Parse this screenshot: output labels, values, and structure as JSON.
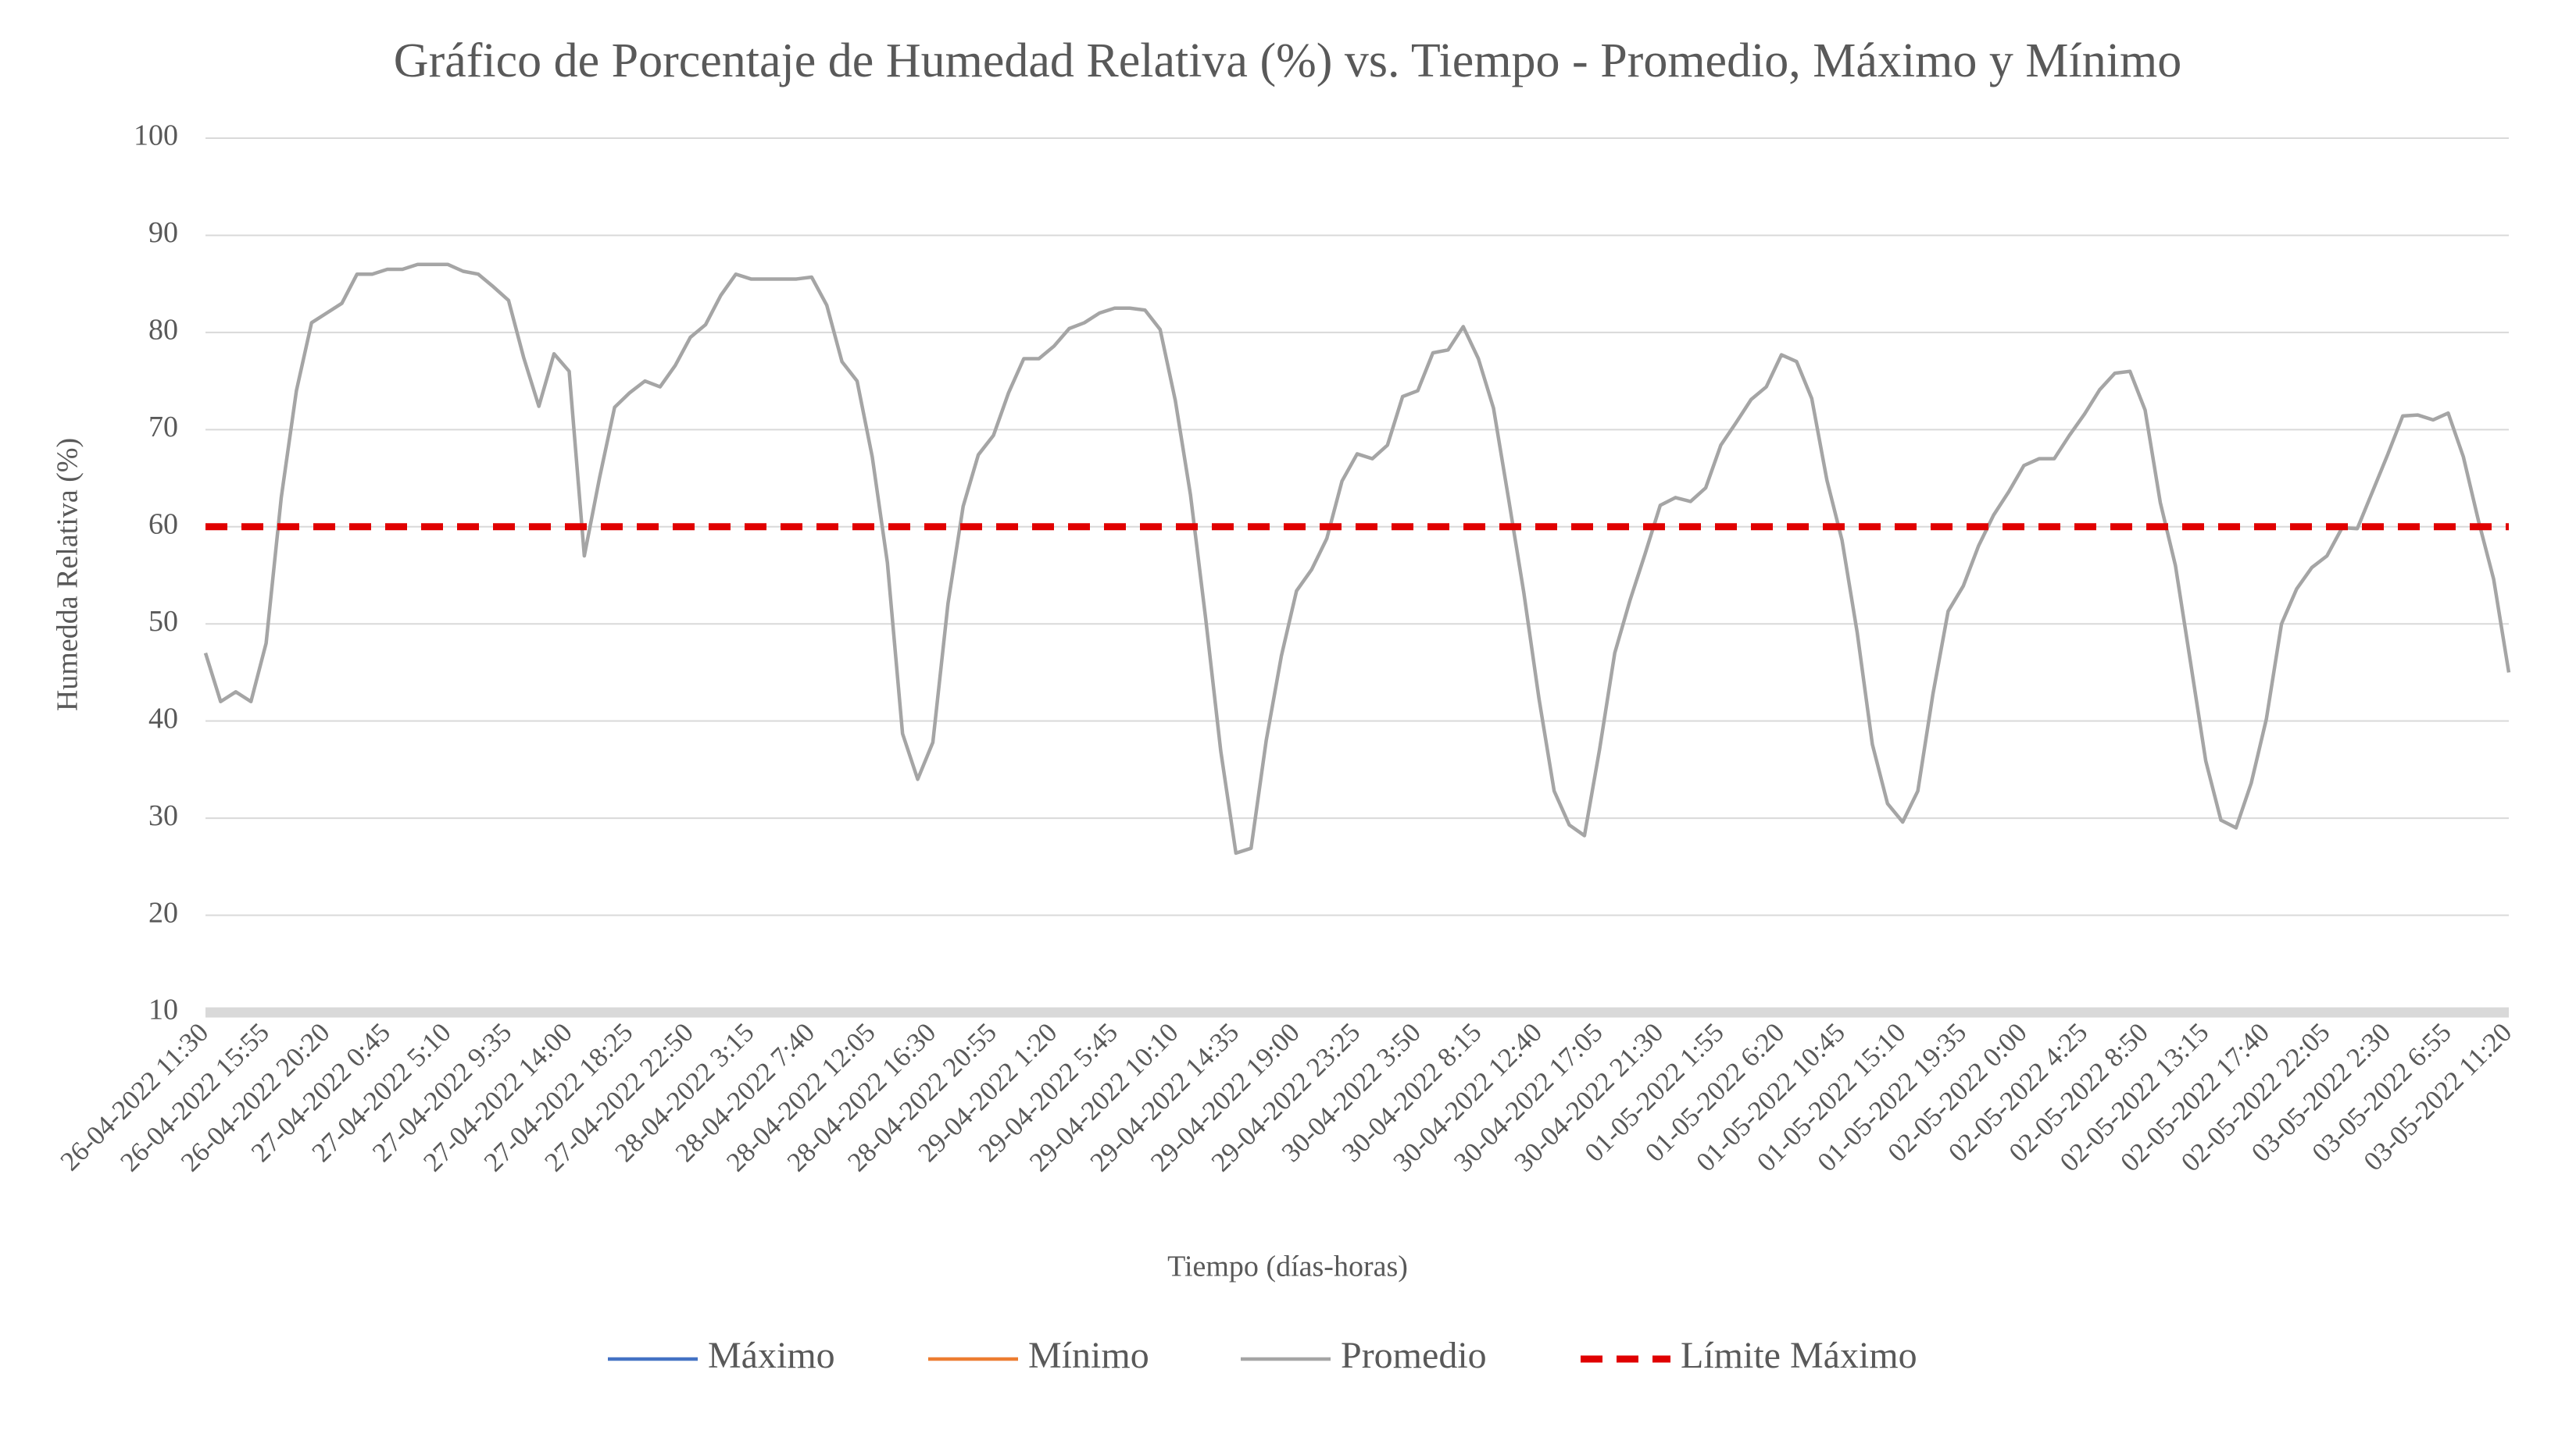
{
  "chart_data": {
    "type": "line",
    "title": "Gráfico de Porcentaje de Humedad Relativa (%) vs. Tiempo - Promedio, Máximo y Mínimo",
    "x_label": "Tiempo (días-horas)",
    "y_label": "Humedda Relativa (%)",
    "ylim": [
      10,
      100
    ],
    "yticks": [
      10,
      20,
      30,
      40,
      50,
      60,
      70,
      80,
      90,
      100
    ],
    "grid": true,
    "legend": "bottom",
    "categories": [
      "26-04-2022 11:30",
      null,
      null,
      null,
      "26-04-2022 15:55",
      null,
      null,
      null,
      "26-04-2022 20:20",
      null,
      null,
      null,
      "27-04-2022 0:45",
      null,
      null,
      null,
      "27-04-2022 5:10",
      null,
      null,
      null,
      "27-04-2022 9:35",
      null,
      null,
      null,
      "27-04-2022 14:00",
      null,
      null,
      null,
      "27-04-2022 18:25",
      null,
      null,
      null,
      "27-04-2022 22:50",
      null,
      null,
      null,
      "28-04-2022 3:15",
      null,
      null,
      null,
      "28-04-2022 7:40",
      null,
      null,
      null,
      "28-04-2022 12:05",
      null,
      null,
      null,
      "28-04-2022 16:30",
      null,
      null,
      null,
      "28-04-2022 20:55",
      null,
      null,
      null,
      "29-04-2022 1:20",
      null,
      null,
      null,
      "29-04-2022 5:45",
      null,
      null,
      null,
      "29-04-2022 10:10",
      null,
      null,
      null,
      "29-04-2022 14:35",
      null,
      null,
      null,
      "29-04-2022 19:00",
      null,
      null,
      null,
      "29-04-2022 23:25",
      null,
      null,
      null,
      "30-04-2022 3:50",
      null,
      null,
      null,
      "30-04-2022 8:15",
      null,
      null,
      null,
      "30-04-2022 12:40",
      null,
      null,
      null,
      "30-04-2022 17:05",
      null,
      null,
      null,
      "30-04-2022 21:30",
      null,
      null,
      null,
      "01-05-2022 1:55",
      null,
      null,
      null,
      "01-05-2022 6:20",
      null,
      null,
      null,
      "01-05-2022 10:45",
      null,
      null,
      null,
      "01-05-2022 15:10",
      null,
      null,
      null,
      "01-05-2022 19:35",
      null,
      null,
      null,
      "02-05-2022 0:00",
      null,
      null,
      null,
      "02-05-2022 4:25",
      null,
      null,
      null,
      "02-05-2022 8:50",
      null,
      null,
      null,
      "02-05-2022 13:15",
      null,
      null,
      null,
      "02-05-2022 17:40",
      null,
      null,
      null,
      "02-05-2022 22:05",
      null,
      null,
      null,
      "03-05-2022 2:30",
      null,
      null,
      null,
      "03-05-2022 6:55",
      null,
      null,
      null,
      "03-05-2022 11:20"
    ],
    "series": [
      {
        "name": "Máximo",
        "color": "#4472c4",
        "dash": false,
        "values": [
          null,
          null,
          null,
          null,
          null,
          null,
          null,
          null,
          null,
          null,
          null,
          null,
          null,
          null,
          null,
          null,
          null,
          null,
          null,
          null,
          null,
          null,
          null,
          null,
          null,
          null,
          null,
          null,
          null,
          null,
          null,
          null,
          null,
          null,
          null,
          null,
          null,
          null,
          null,
          null,
          null,
          null,
          null,
          null,
          null,
          null,
          null,
          null,
          null,
          null,
          null,
          null,
          null,
          null,
          null,
          null,
          null,
          null,
          null,
          null,
          null,
          null,
          null,
          null,
          null,
          null,
          null,
          null,
          null,
          null,
          null,
          null,
          null,
          null,
          null,
          null,
          null,
          null,
          null,
          null,
          null,
          null,
          null,
          null,
          null,
          null,
          null,
          null,
          null,
          null,
          null,
          null,
          null,
          null,
          null,
          null,
          null,
          null,
          null,
          null,
          null,
          null,
          null,
          null,
          null,
          null,
          null,
          null,
          null,
          null,
          null,
          null,
          null,
          null,
          null,
          null,
          null,
          null,
          null,
          null,
          null,
          null,
          null,
          null,
          null,
          null,
          null,
          null,
          null,
          null,
          null,
          null,
          null,
          null,
          null,
          null,
          null,
          null,
          null,
          null,
          null,
          null,
          null,
          null,
          null,
          null,
          null,
          null,
          null,
          null,
          null,
          null,
          null
        ]
      },
      {
        "name": "Mínimo",
        "color": "#ed7d31",
        "dash": false,
        "values": [
          null,
          null,
          null,
          null,
          null,
          null,
          null,
          null,
          null,
          null,
          null,
          null,
          null,
          null,
          null,
          null,
          null,
          null,
          null,
          null,
          null,
          null,
          null,
          null,
          null,
          null,
          null,
          null,
          null,
          null,
          null,
          null,
          null,
          null,
          null,
          null,
          null,
          null,
          null,
          null,
          null,
          null,
          null,
          null,
          null,
          null,
          null,
          null,
          null,
          null,
          null,
          null,
          null,
          null,
          null,
          null,
          null,
          null,
          null,
          null,
          null,
          null,
          null,
          null,
          null,
          null,
          null,
          null,
          null,
          null,
          null,
          null,
          null,
          null,
          null,
          null,
          null,
          null,
          null,
          null,
          null,
          null,
          null,
          null,
          null,
          null,
          null,
          null,
          null,
          null,
          null,
          null,
          null,
          null,
          null,
          null,
          null,
          null,
          null,
          null,
          null,
          null,
          null,
          null,
          null,
          null,
          null,
          null,
          null,
          null,
          null,
          null,
          null,
          null,
          null,
          null,
          null,
          null,
          null,
          null,
          null,
          null,
          null,
          null,
          null,
          null,
          null,
          null,
          null,
          null,
          null,
          null,
          null,
          null,
          null,
          null,
          null,
          null,
          null,
          null,
          null,
          null,
          null,
          null,
          null,
          null,
          null,
          null,
          null,
          null,
          null,
          null,
          null
        ]
      },
      {
        "name": "Promedio",
        "color": "#a5a5a5",
        "dash": false,
        "values": [
          47,
          42,
          43,
          42,
          48,
          63,
          74,
          81,
          82,
          83,
          86,
          86,
          86.5,
          86.5,
          87,
          87,
          87,
          86.3,
          86,
          84.7,
          83.3,
          77.4,
          72.4,
          77.8,
          76,
          57,
          65,
          72.3,
          73.8,
          75,
          74.4,
          76.6,
          79.5,
          80.8,
          83.8,
          86,
          85.5,
          85.5,
          85.5,
          85.5,
          85.7,
          82.8,
          77,
          75,
          67.2,
          56.3,
          38.7,
          34,
          37.8,
          52.1,
          62.1,
          67.4,
          69.4,
          73.8,
          77.3,
          77.3,
          78.6,
          80.4,
          81,
          82,
          82.5,
          82.5,
          82.3,
          80.3,
          73,
          63.3,
          50.6,
          36.9,
          26.4,
          26.9,
          38,
          46.7,
          53.4,
          55.6,
          58.8,
          64.7,
          67.5,
          67,
          68.4,
          73.4,
          74,
          77.9,
          78.2,
          80.6,
          77.3,
          72.2,
          62.8,
          53.2,
          42.3,
          32.8,
          29.3,
          28.2,
          37.1,
          47,
          52.4,
          57.2,
          62.2,
          63,
          62.6,
          64,
          68.4,
          70.7,
          73.1,
          74.4,
          77.7,
          77,
          73.2,
          64.8,
          58.6,
          49.1,
          37.6,
          31.5,
          29.6,
          32.8,
          42.8,
          51.3,
          53.9,
          58,
          61.2,
          63.6,
          66.3,
          67,
          67,
          69.4,
          71.6,
          74.1,
          75.8,
          76,
          72,
          62.5,
          56,
          46,
          35.9,
          29.8,
          29,
          33.6,
          40.2,
          50,
          53.6,
          55.8,
          57,
          59.9,
          59.8,
          63.6,
          67.4,
          71.4,
          71.5,
          71,
          71.7,
          67.2,
          60.6,
          54.6,
          45
        ]
      },
      {
        "name": "Límite Máximo",
        "color": "#e00000",
        "dash": true,
        "values": [
          60,
          60,
          60,
          60,
          60,
          60,
          60,
          60,
          60,
          60,
          60,
          60,
          60,
          60,
          60,
          60,
          60,
          60,
          60,
          60,
          60,
          60,
          60,
          60,
          60,
          60,
          60,
          60,
          60,
          60,
          60,
          60,
          60,
          60,
          60,
          60,
          60,
          60,
          60,
          60,
          60,
          60,
          60,
          60,
          60,
          60,
          60,
          60,
          60,
          60,
          60,
          60,
          60,
          60,
          60,
          60,
          60,
          60,
          60,
          60,
          60,
          60,
          60,
          60,
          60,
          60,
          60,
          60,
          60,
          60,
          60,
          60,
          60,
          60,
          60,
          60,
          60,
          60,
          60,
          60,
          60,
          60,
          60,
          60,
          60,
          60,
          60,
          60,
          60,
          60,
          60,
          60,
          60,
          60,
          60,
          60,
          60,
          60,
          60,
          60,
          60,
          60,
          60,
          60,
          60,
          60,
          60,
          60,
          60,
          60,
          60,
          60,
          60,
          60,
          60,
          60,
          60,
          60,
          60,
          60,
          60,
          60,
          60,
          60,
          60,
          60,
          60,
          60,
          60,
          60,
          60,
          60,
          60,
          60,
          60,
          60,
          60,
          60,
          60,
          60,
          60,
          60,
          60,
          60,
          60,
          60,
          60,
          60,
          60,
          60,
          60,
          60,
          60
        ]
      }
    ]
  }
}
